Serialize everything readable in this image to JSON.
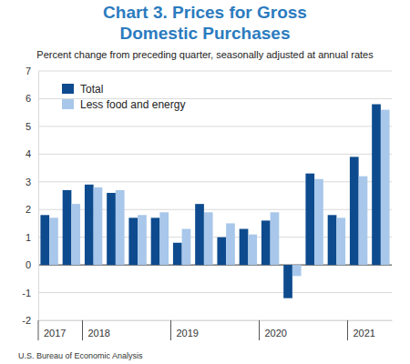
{
  "chart_data": {
    "type": "bar",
    "title": "Chart 3. Prices for Gross Domestic Purchases",
    "subtitle": "Percent change from preceding quarter, seasonally adjusted at annual rates",
    "source": "U.S. Bureau of Economic Analysis",
    "categories": [
      "2017",
      null,
      "2018",
      null,
      null,
      null,
      "2019",
      null,
      null,
      null,
      "2020",
      null,
      null,
      null,
      "2021",
      null
    ],
    "series": [
      {
        "name": "Total",
        "color": "#0d4b8e",
        "values": [
          1.8,
          2.7,
          2.9,
          2.6,
          1.7,
          1.7,
          0.8,
          2.2,
          1.0,
          1.3,
          1.6,
          -1.2,
          3.3,
          1.8,
          3.9,
          5.8
        ]
      },
      {
        "name": "Less food and energy",
        "color": "#a8c7ea",
        "values": [
          1.7,
          2.2,
          2.8,
          2.7,
          1.8,
          1.9,
          1.3,
          1.9,
          1.5,
          1.1,
          1.9,
          -0.4,
          3.1,
          1.7,
          3.2,
          5.6
        ]
      }
    ],
    "ylim": [
      -2,
      7
    ],
    "yticks": [
      -2,
      -1,
      0,
      1,
      2,
      3,
      4,
      5,
      6,
      7
    ],
    "grid": true,
    "legend": "top-left"
  }
}
